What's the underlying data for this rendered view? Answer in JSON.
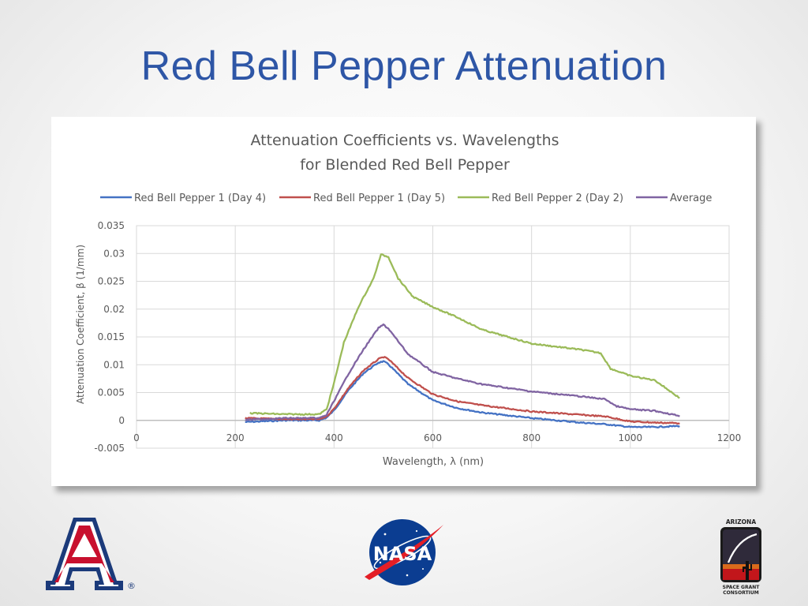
{
  "slide": {
    "title": "Red Bell Pepper Attenuation"
  },
  "logos": {
    "ua": {
      "letter": "A",
      "mark": "®"
    },
    "nasa": {
      "text": "NASA"
    },
    "sgc": {
      "top": "ARIZONA",
      "bottom": [
        "SPACE GRANT",
        "CONSORTIUM"
      ]
    }
  },
  "colors": {
    "title": "#2e56a6",
    "ua_blue": "#1b3a7a",
    "ua_red": "#c8102e",
    "nasa_blue": "#0b3d91"
  },
  "chart_data": {
    "type": "line",
    "title": [
      "Attenuation Coefficients vs. Wavelengths",
      "for Blended Red Bell Pepper"
    ],
    "xlabel": "Wavelength, λ (nm)",
    "ylabel": "Attenuation Coefficient, β (1/mm)",
    "xlim": [
      0,
      1200
    ],
    "ylim": [
      -0.005,
      0.035
    ],
    "xticks": [
      0,
      200,
      400,
      600,
      800,
      1000,
      1200
    ],
    "yticks": [
      -0.005,
      0,
      0.005,
      0.01,
      0.015,
      0.02,
      0.025,
      0.03,
      0.035
    ],
    "xtick_labels": [
      "0",
      "200",
      "400",
      "600",
      "800",
      "1000",
      "1200"
    ],
    "ytick_labels": [
      "-0.005",
      "0",
      "0.005",
      "0.01",
      "0.015",
      "0.02",
      "0.025",
      "0.03",
      "0.035"
    ],
    "grid": true,
    "legend": "top",
    "series": [
      {
        "name": "Red Bell Pepper 1 (Day 4)",
        "color": "#4472c4",
        "x": [
          220,
          300,
          370,
          385,
          400,
          430,
          460,
          490,
          500,
          510,
          550,
          600,
          650,
          700,
          800,
          900,
          950,
          1000,
          1050,
          1100
        ],
        "y": [
          -0.0003,
          0.0,
          0.0,
          0.0005,
          0.0018,
          0.0055,
          0.0085,
          0.0104,
          0.0106,
          0.0101,
          0.0065,
          0.0036,
          0.0022,
          0.0014,
          0.0004,
          -0.0004,
          -0.0007,
          -0.0012,
          -0.0012,
          -0.001
        ]
      },
      {
        "name": "Red Bell Pepper 1 (Day 5)",
        "color": "#c0504d",
        "x": [
          220,
          300,
          370,
          385,
          400,
          430,
          460,
          490,
          500,
          510,
          550,
          600,
          650,
          700,
          800,
          900,
          950,
          1000,
          1050,
          1100
        ],
        "y": [
          0.0004,
          0.0002,
          0.0002,
          0.0007,
          0.0021,
          0.0059,
          0.009,
          0.011,
          0.0114,
          0.011,
          0.0076,
          0.0047,
          0.0034,
          0.0027,
          0.0016,
          0.001,
          0.0007,
          -0.0002,
          -0.0004,
          -0.0005
        ]
      },
      {
        "name": "Red Bell Pepper 2 (Day 2)",
        "color": "#9bbb59",
        "x": [
          230,
          300,
          370,
          385,
          400,
          420,
          450,
          480,
          495,
          510,
          530,
          560,
          600,
          650,
          700,
          800,
          900,
          940,
          960,
          1000,
          1050,
          1100
        ],
        "y": [
          0.0013,
          0.0011,
          0.0011,
          0.002,
          0.0067,
          0.014,
          0.0205,
          0.0255,
          0.0298,
          0.0294,
          0.0255,
          0.0222,
          0.0204,
          0.0185,
          0.0163,
          0.0138,
          0.0127,
          0.0121,
          0.0093,
          0.008,
          0.0072,
          0.004
        ]
      },
      {
        "name": "Average",
        "color": "#8064a2",
        "x": [
          220,
          300,
          370,
          385,
          400,
          430,
          460,
          490,
          500,
          510,
          550,
          600,
          650,
          700,
          800,
          900,
          950,
          970,
          1000,
          1050,
          1100
        ],
        "y": [
          0.0001,
          0.0004,
          0.0004,
          0.001,
          0.0035,
          0.0085,
          0.0128,
          0.0166,
          0.0172,
          0.0165,
          0.0119,
          0.0087,
          0.0075,
          0.0065,
          0.0052,
          0.0043,
          0.0038,
          0.0026,
          0.002,
          0.0017,
          0.0008
        ]
      }
    ]
  }
}
